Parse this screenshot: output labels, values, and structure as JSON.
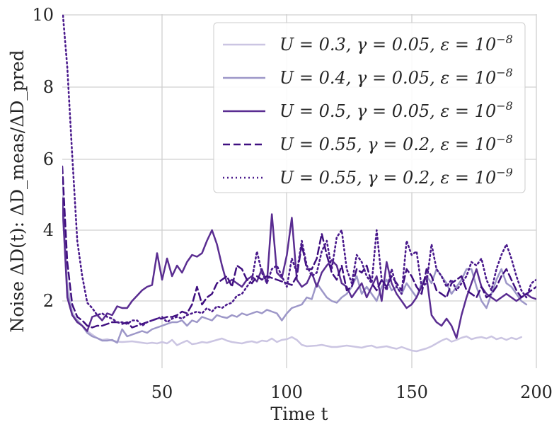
{
  "chart_data": {
    "type": "line",
    "title": "",
    "xlabel": "Time t",
    "ylabel": "Noise ΔD(t): ΔD_meas/ΔD_pred",
    "xlim": [
      10,
      200
    ],
    "ylim": [
      0,
      10
    ],
    "x_ticks": [
      50,
      100,
      150,
      200
    ],
    "x_tick_labels": [
      "50",
      "100",
      "150",
      "200"
    ],
    "y_ticks": [
      2,
      4,
      6,
      8,
      10
    ],
    "y_tick_labels": [
      "2",
      "4",
      "6",
      "8",
      "10"
    ],
    "grid": true,
    "legend_position": "top-right",
    "series": [
      {
        "name": "U = 0.3, γ = 0.05, ε = 10^-8",
        "label_main": "U = 0.3, γ = 0.05, ε = 10",
        "label_exp": "−8",
        "color": "#cbc5e2",
        "dash": "solid",
        "x": [
          10,
          12,
          14,
          16,
          18,
          20,
          22,
          24,
          26,
          28,
          30,
          32,
          34,
          36,
          38,
          40,
          42,
          44,
          46,
          48,
          50,
          52,
          54,
          56,
          58,
          60,
          62,
          64,
          66,
          68,
          70,
          72,
          74,
          76,
          78,
          80,
          82,
          84,
          86,
          88,
          90,
          92,
          94,
          96,
          98,
          100,
          102,
          104,
          106,
          108,
          110,
          112,
          114,
          116,
          118,
          120,
          122,
          124,
          126,
          128,
          130,
          132,
          134,
          136,
          138,
          140,
          142,
          144,
          146,
          148,
          150,
          152,
          154,
          156,
          158,
          160,
          162,
          164,
          166,
          168,
          170,
          172,
          174,
          176,
          178,
          180,
          182,
          184,
          186,
          188,
          190,
          192,
          194
        ],
        "y": [
          5.2,
          2.4,
          1.6,
          1.3,
          1.2,
          1.05,
          0.95,
          0.85,
          0.8,
          0.82,
          0.78,
          0.75,
          0.74,
          0.75,
          0.76,
          0.74,
          0.72,
          0.7,
          0.72,
          0.7,
          0.74,
          0.7,
          0.8,
          0.65,
          0.72,
          0.78,
          0.68,
          0.7,
          0.74,
          0.72,
          0.76,
          0.8,
          0.84,
          0.78,
          0.74,
          0.72,
          0.7,
          0.74,
          0.76,
          0.72,
          0.78,
          0.76,
          0.84,
          0.74,
          0.8,
          0.82,
          0.88,
          0.8,
          0.66,
          0.62,
          0.63,
          0.64,
          0.66,
          0.63,
          0.6,
          0.6,
          0.62,
          0.64,
          0.62,
          0.6,
          0.58,
          0.62,
          0.64,
          0.58,
          0.6,
          0.62,
          0.58,
          0.55,
          0.6,
          0.55,
          0.5,
          0.48,
          0.52,
          0.56,
          0.62,
          0.7,
          0.78,
          0.84,
          0.75,
          0.8,
          0.86,
          0.9,
          0.82,
          0.86,
          0.88,
          0.84,
          0.9,
          0.82,
          0.86,
          0.8,
          0.86,
          0.82,
          0.88
        ]
      },
      {
        "name": "U = 0.4, γ = 0.05, ε = 10^-8",
        "label_main": "U = 0.4, γ = 0.05, ε = 10",
        "label_exp": "−8",
        "color": "#9d97c8",
        "dash": "solid",
        "x": [
          10,
          12,
          14,
          16,
          18,
          20,
          22,
          24,
          26,
          28,
          30,
          32,
          34,
          36,
          38,
          40,
          42,
          44,
          46,
          48,
          50,
          52,
          54,
          56,
          58,
          60,
          62,
          64,
          66,
          68,
          70,
          72,
          74,
          76,
          78,
          80,
          82,
          84,
          86,
          88,
          90,
          92,
          94,
          96,
          98,
          100,
          102,
          104,
          106,
          108,
          110,
          112,
          114,
          116,
          118,
          120,
          122,
          124,
          126,
          128,
          130,
          132,
          134,
          136,
          138,
          140,
          142,
          144,
          146,
          148,
          150,
          152,
          154,
          156,
          158,
          160,
          162,
          164,
          166,
          168,
          170,
          172,
          174,
          176,
          178,
          180,
          182,
          184,
          186,
          188,
          190,
          192,
          194,
          196
        ],
        "y": [
          4.6,
          2.2,
          1.5,
          1.35,
          1.2,
          1.0,
          0.9,
          0.85,
          0.78,
          0.78,
          0.8,
          0.72,
          1.1,
          0.9,
          0.95,
          1.0,
          1.05,
          1.0,
          1.1,
          1.15,
          1.2,
          1.25,
          1.3,
          1.3,
          1.35,
          1.2,
          1.35,
          1.3,
          1.45,
          1.4,
          1.35,
          1.5,
          1.45,
          1.42,
          1.5,
          1.45,
          1.55,
          1.5,
          1.55,
          1.6,
          1.55,
          1.65,
          1.6,
          1.55,
          1.35,
          1.55,
          1.7,
          1.75,
          1.8,
          2.0,
          1.95,
          2.4,
          2.2,
          2.0,
          1.9,
          1.85,
          2.0,
          2.1,
          2.3,
          2.6,
          2.1,
          2.3,
          2.1,
          1.9,
          2.3,
          2.5,
          2.2,
          2.3,
          2.1,
          2.4,
          2.2,
          2.0,
          2.4,
          2.6,
          2.4,
          2.8,
          2.6,
          2.4,
          2.1,
          2.3,
          2.5,
          2.8,
          2.8,
          2.3,
          1.9,
          1.7,
          2.1,
          2.5,
          2.8,
          2.4,
          2.3,
          2.1,
          1.9,
          1.8
        ]
      },
      {
        "name": "U = 0.5, γ = 0.05, ε = 10^-8",
        "label_main": "U = 0.5, γ = 0.05, ε = 10",
        "label_exp": "−8",
        "color": "#5a2d91",
        "dash": "solid",
        "x": [
          10,
          12,
          14,
          16,
          18,
          20,
          22,
          24,
          26,
          28,
          30,
          32,
          34,
          36,
          38,
          40,
          42,
          44,
          46,
          48,
          50,
          52,
          54,
          56,
          58,
          60,
          62,
          64,
          66,
          68,
          70,
          72,
          74,
          76,
          78,
          80,
          82,
          84,
          86,
          88,
          90,
          92,
          94,
          96,
          98,
          100,
          102,
          104,
          106,
          108,
          110,
          112,
          114,
          116,
          118,
          120,
          122,
          124,
          126,
          128,
          130,
          132,
          134,
          136,
          138,
          140,
          142,
          144,
          146,
          148,
          150,
          152,
          154,
          156,
          158,
          160,
          162,
          164,
          166,
          168,
          170,
          172,
          174,
          176,
          178,
          180,
          182,
          184,
          186,
          188,
          190,
          192,
          194,
          196,
          198,
          200
        ],
        "y": [
          4.8,
          2.0,
          1.5,
          1.3,
          1.2,
          1.05,
          1.45,
          1.5,
          1.35,
          1.55,
          1.5,
          1.75,
          1.7,
          1.7,
          1.9,
          2.05,
          2.2,
          2.3,
          2.35,
          3.25,
          2.5,
          3.1,
          2.6,
          2.9,
          2.7,
          3.0,
          3.2,
          3.15,
          3.25,
          3.6,
          3.9,
          3.5,
          2.9,
          2.4,
          2.5,
          2.4,
          2.3,
          2.5,
          2.6,
          2.45,
          2.8,
          2.4,
          4.35,
          2.7,
          2.55,
          3.2,
          4.25,
          2.5,
          2.3,
          2.4,
          2.7,
          2.3,
          2.7,
          2.9,
          3.05,
          2.9,
          2.4,
          2.3,
          2.0,
          2.2,
          2.4,
          2.0,
          2.3,
          2.6,
          1.9,
          3.0,
          2.4,
          2.1,
          1.9,
          1.7,
          1.8,
          2.0,
          2.3,
          2.6,
          1.5,
          1.3,
          1.2,
          1.4,
          1.2,
          0.85,
          1.5,
          2.0,
          2.4,
          2.8,
          2.3,
          2.1,
          2.0,
          1.9,
          2.0,
          2.1,
          2.0,
          1.9,
          2.0,
          2.1,
          2.0,
          1.95
        ]
      },
      {
        "name": "U = 0.55, γ = 0.2, ε = 10^-8",
        "label_main": "U = 0.55, γ = 0.2, ε = 10",
        "label_exp": "−8",
        "color": "#3f0f80",
        "dash": "dashed",
        "x": [
          10,
          12,
          14,
          16,
          18,
          20,
          22,
          24,
          26,
          28,
          30,
          32,
          34,
          36,
          38,
          40,
          42,
          44,
          46,
          48,
          50,
          52,
          54,
          56,
          58,
          60,
          62,
          64,
          66,
          68,
          70,
          72,
          74,
          76,
          78,
          80,
          82,
          84,
          86,
          88,
          90,
          92,
          94,
          96,
          98,
          100,
          102,
          104,
          106,
          108,
          110,
          112,
          114,
          116,
          118,
          120,
          122,
          124,
          126,
          128,
          130,
          132,
          134,
          136,
          138,
          140,
          142,
          144,
          146,
          148,
          150,
          152,
          154,
          156,
          158,
          160,
          162,
          164,
          166,
          168,
          170,
          172,
          174,
          176,
          178,
          180,
          182,
          184,
          186,
          188,
          190,
          192,
          194,
          196,
          198,
          200
        ],
        "y": [
          5.7,
          3.0,
          1.8,
          1.45,
          1.35,
          1.2,
          1.15,
          1.2,
          1.2,
          1.25,
          1.3,
          1.3,
          1.25,
          1.3,
          1.15,
          1.2,
          1.25,
          1.3,
          1.35,
          1.4,
          1.4,
          1.45,
          1.45,
          1.5,
          1.6,
          1.55,
          1.8,
          2.3,
          1.8,
          2.0,
          2.1,
          2.4,
          2.5,
          2.6,
          2.3,
          2.9,
          2.8,
          2.5,
          2.4,
          2.6,
          2.5,
          2.6,
          2.55,
          2.5,
          2.45,
          2.4,
          2.35,
          2.6,
          3.5,
          2.8,
          2.8,
          3.1,
          3.8,
          3.2,
          2.7,
          2.5,
          2.9,
          2.2,
          2.3,
          2.8,
          2.7,
          2.9,
          2.4,
          2.2,
          2.5,
          2.3,
          2.6,
          2.4,
          2.2,
          2.8,
          2.6,
          2.3,
          2.1,
          2.8,
          2.6,
          2.2,
          2.1,
          2.0,
          2.4,
          2.5,
          2.6,
          2.2,
          2.1,
          2.0,
          2.3,
          2.0,
          2.1,
          2.3,
          2.6,
          2.8,
          2.5,
          2.2,
          2.0,
          2.1,
          2.2,
          2.3
        ]
      },
      {
        "name": "U = 0.55, γ = 0.2, ε = 10^-9",
        "label_main": "U = 0.55, γ = 0.2, ε = 10",
        "label_exp": "−9",
        "color": "#4a1a8c",
        "dash": "dotted",
        "x": [
          10,
          12,
          14,
          16,
          18,
          20,
          22,
          24,
          26,
          28,
          30,
          32,
          34,
          36,
          38,
          40,
          42,
          44,
          46,
          48,
          50,
          52,
          54,
          56,
          58,
          60,
          62,
          64,
          66,
          68,
          70,
          72,
          74,
          76,
          78,
          80,
          82,
          84,
          86,
          88,
          90,
          92,
          94,
          96,
          98,
          100,
          102,
          104,
          106,
          108,
          110,
          112,
          114,
          116,
          118,
          120,
          122,
          124,
          126,
          128,
          130,
          132,
          134,
          136,
          138,
          140,
          142,
          144,
          146,
          148,
          150,
          152,
          154,
          156,
          158,
          160,
          162,
          164,
          166,
          168,
          170,
          172,
          174,
          176,
          178,
          180,
          182,
          184,
          186,
          188,
          190,
          192,
          194,
          196,
          198,
          200
        ],
        "y": [
          10.2,
          8.5,
          6.0,
          3.6,
          2.6,
          1.85,
          1.7,
          1.5,
          1.55,
          1.45,
          1.4,
          1.3,
          1.3,
          1.25,
          1.35,
          1.35,
          1.2,
          1.3,
          1.35,
          1.4,
          1.45,
          1.3,
          1.4,
          1.45,
          1.4,
          1.5,
          1.55,
          1.6,
          1.55,
          1.7,
          1.6,
          1.75,
          1.7,
          1.8,
          1.85,
          2.05,
          2.1,
          2.3,
          2.5,
          3.3,
          2.7,
          2.4,
          2.8,
          2.9,
          2.6,
          2.3,
          3.1,
          2.7,
          3.6,
          2.9,
          2.6,
          2.7,
          3.3,
          3.6,
          2.8,
          3.7,
          3.9,
          2.8,
          2.4,
          3.2,
          3.0,
          2.6,
          2.4,
          3.9,
          2.5,
          2.2,
          2.8,
          2.3,
          2.1,
          3.6,
          3.2,
          3.3,
          2.3,
          2.4,
          3.5,
          2.8,
          2.6,
          2.3,
          2.5,
          2.2,
          2.4,
          2.6,
          3.0,
          2.9,
          3.1,
          2.5,
          2.2,
          2.8,
          3.2,
          3.5,
          3.1,
          2.6,
          2.2,
          2.0,
          2.4,
          2.5
        ]
      }
    ]
  }
}
